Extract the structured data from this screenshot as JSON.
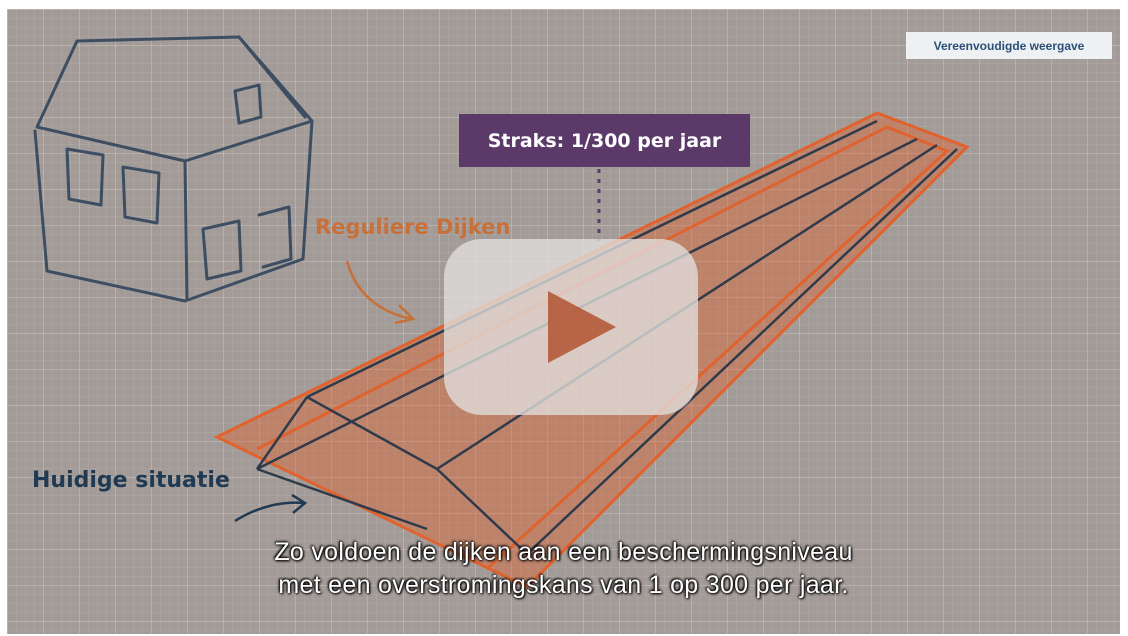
{
  "video": {
    "badge_label": "Vereenvoudigde weergave",
    "callout_label": "Straks: 1/300 per jaar",
    "label_regular": "Reguliere Dijken",
    "label_current": "Huidige situatie",
    "subtitle_line1": "Zo voldoen de dijken aan een beschermingsniveau",
    "subtitle_line2": "met een overstromingskans van 1 op 300 per jaar.",
    "play_icon": "youtube-play-icon",
    "colors": {
      "dike_orange": "#e0622e",
      "callout_purple": "#5b3a6a",
      "label_blue": "#203a54",
      "label_orange": "#c8703a",
      "grid_bg": "#a39b97"
    }
  }
}
